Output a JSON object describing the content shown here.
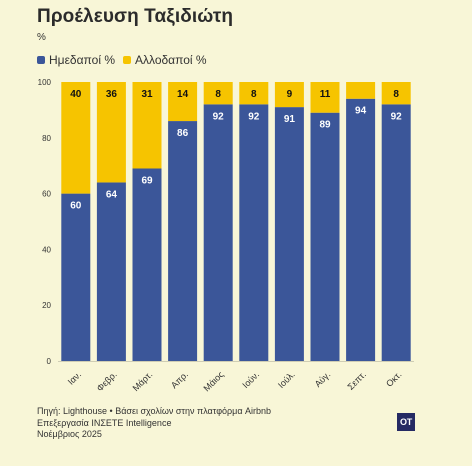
{
  "title": "Προέλευση Ταξιδιώτη",
  "unit": "%",
  "colors": {
    "domestic": "#3b5699",
    "foreign": "#f6c400",
    "background": "#f8f6d7"
  },
  "chart_data": {
    "type": "bar",
    "stacked": true,
    "categories": [
      "Ιαν.",
      "Φεβρ.",
      "Μάρτ.",
      "Απρ.",
      "Μάιος",
      "Ιούν.",
      "Ιούλ.",
      "Αύγ.",
      "Σεπτ.",
      "Οκτ."
    ],
    "series": [
      {
        "name": "Ημεδαποί %",
        "values": [
          60,
          64,
          69,
          86,
          92,
          92,
          91,
          89,
          94,
          92
        ]
      },
      {
        "name": "Αλλοδαποί %",
        "values": [
          40,
          36,
          31,
          14,
          8,
          8,
          9,
          11,
          6,
          8
        ]
      }
    ],
    "data_labels_series2_shown": [
      true,
      true,
      true,
      true,
      true,
      true,
      true,
      true,
      false,
      true
    ],
    "ylim": [
      0,
      100
    ],
    "yticks": [
      0,
      20,
      40,
      60,
      80,
      100
    ],
    "ylabel": "%",
    "legend": "top-left",
    "grid": false
  },
  "source": {
    "line1": "Πηγή: Lighthouse • Βάσει σχολίων στην πλατφόρμα Airbnb",
    "line2": "Επεξεργασία INΣΕΤΕ Intelligence",
    "line3": "Νοέμβριος 2025"
  },
  "logo": "OT"
}
